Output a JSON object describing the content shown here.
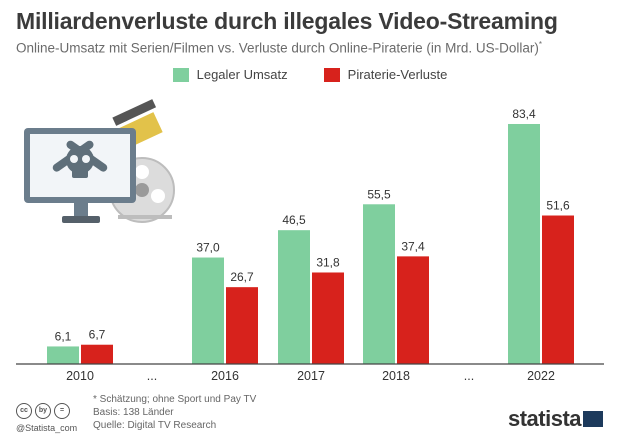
{
  "title": "Milliardenverluste durch illegales Video-Streaming",
  "subtitle": "Online-Umsatz mit Serien/Filmen vs. Verluste durch Online-Piraterie (in Mrd. US-Dollar)",
  "subtitle_mark": "*",
  "colors": {
    "legal": "#7fcf9e",
    "piracy": "#d7221c",
    "axis": "#444444"
  },
  "chart_data": {
    "type": "bar",
    "categories": [
      "2010",
      "...",
      "2016",
      "2017",
      "2018",
      "...",
      "2022"
    ],
    "series": [
      {
        "name": "Legaler Umsatz",
        "values": [
          6.1,
          null,
          37.0,
          46.5,
          55.5,
          null,
          83.4
        ],
        "labels": [
          "6,1",
          "",
          "37,0",
          "46,5",
          "55,5",
          "",
          "83,4"
        ]
      },
      {
        "name": "Piraterie-Verluste",
        "values": [
          6.7,
          null,
          26.7,
          31.8,
          37.4,
          null,
          51.6
        ],
        "labels": [
          "6,7",
          "",
          "26,7",
          "31,8",
          "37,4",
          "",
          "51,6"
        ]
      }
    ],
    "ylim": [
      0,
      90
    ],
    "grid": false,
    "legend_position": "top-center"
  },
  "footer": {
    "note1": "* Schätzung; ohne Sport und Pay TV",
    "note2": "Basis: 138 Länder",
    "source": "Quelle: Digital TV Research",
    "handle": "@Statista_com",
    "brand": "statista",
    "cc_icons": [
      "cc",
      "by",
      "="
    ]
  },
  "illustration": {
    "icons": [
      "monitor-icon",
      "skull-crossbones-icon",
      "film-reel-icon",
      "film-clapper-icon"
    ]
  }
}
